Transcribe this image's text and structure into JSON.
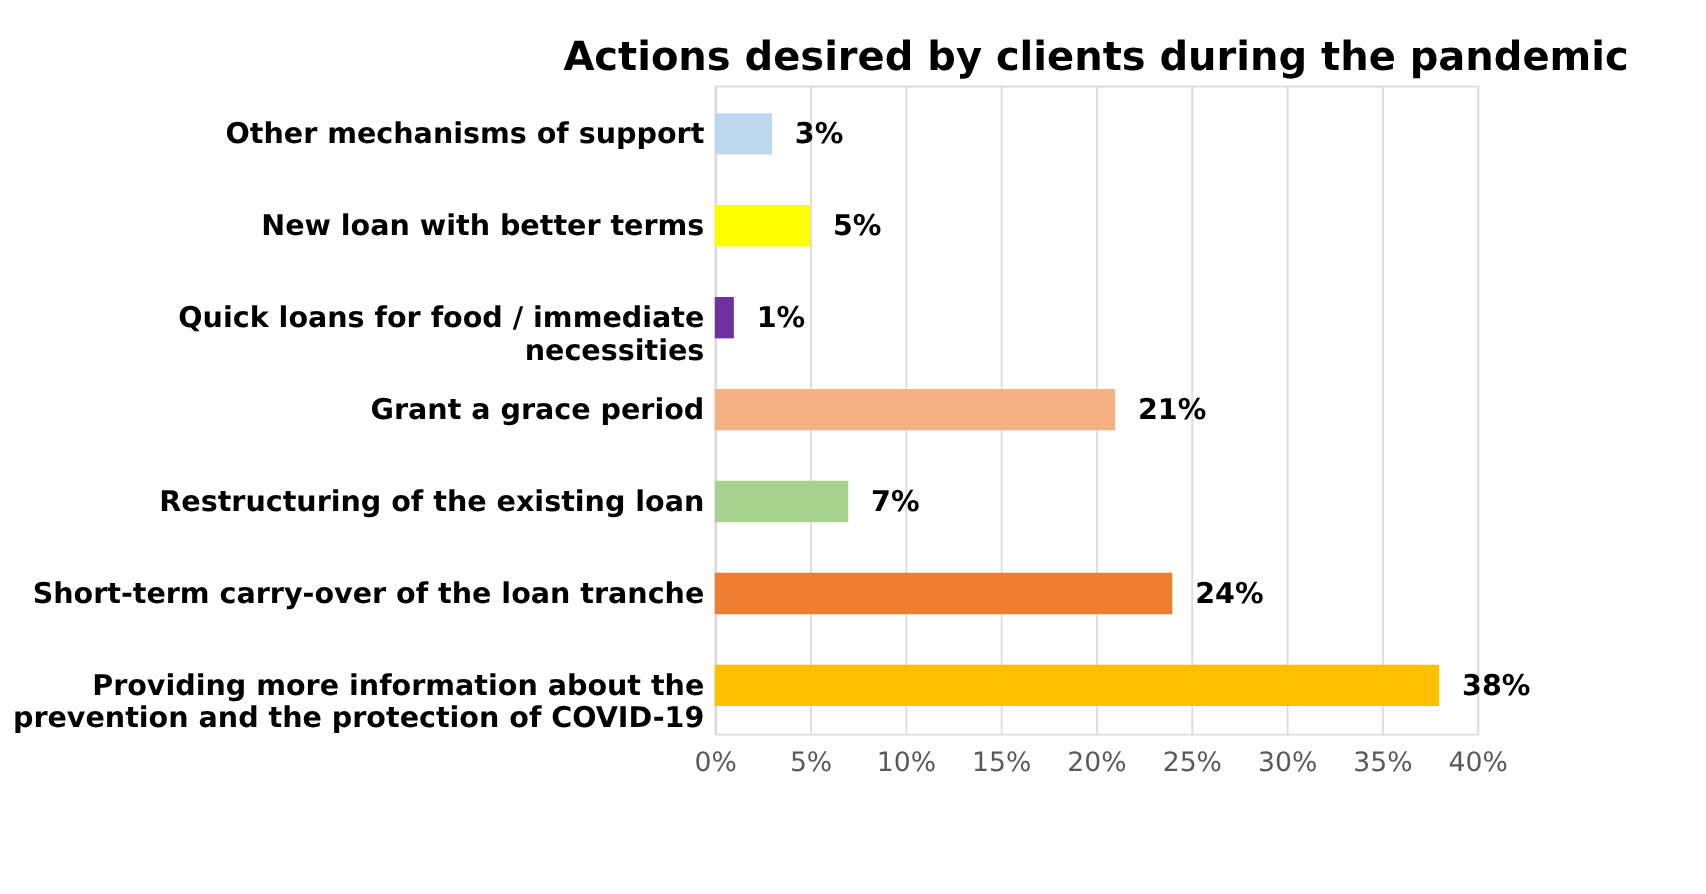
{
  "chart_data": {
    "type": "bar",
    "orientation": "horizontal",
    "title": "Actions desired by clients during the pandemic",
    "categories": [
      "Other mechanisms of support",
      "New loan with better terms",
      "Quick loans for food /  immediate necessities",
      "Grant a grace period",
      "Restructuring of the existing loan",
      "Short-term carry-over of the loan tranche",
      "Providing more information about the prevention and the protection of COVID-19"
    ],
    "values": [
      3,
      5,
      1,
      21,
      7,
      24,
      38
    ],
    "value_labels": [
      "3%",
      "5%",
      "1%",
      "21%",
      "7%",
      "24%",
      "38%"
    ],
    "colors": [
      "#bdd7ee",
      "#ffff00",
      "#7030a0",
      "#f4b183",
      "#a9d18e",
      "#ed7d31",
      "#ffc000"
    ],
    "xlim": [
      0,
      40
    ],
    "xticks": [
      {
        "value": 0,
        "label": "0%"
      },
      {
        "value": 5,
        "label": "5%"
      },
      {
        "value": 10,
        "label": "10%"
      },
      {
        "value": 15,
        "label": "15%"
      },
      {
        "value": 20,
        "label": "20%"
      },
      {
        "value": 25,
        "label": "25%"
      },
      {
        "value": 30,
        "label": "30%"
      },
      {
        "value": 35,
        "label": "35%"
      },
      {
        "value": 40,
        "label": "40%"
      }
    ],
    "grid": "x",
    "legend": false
  }
}
